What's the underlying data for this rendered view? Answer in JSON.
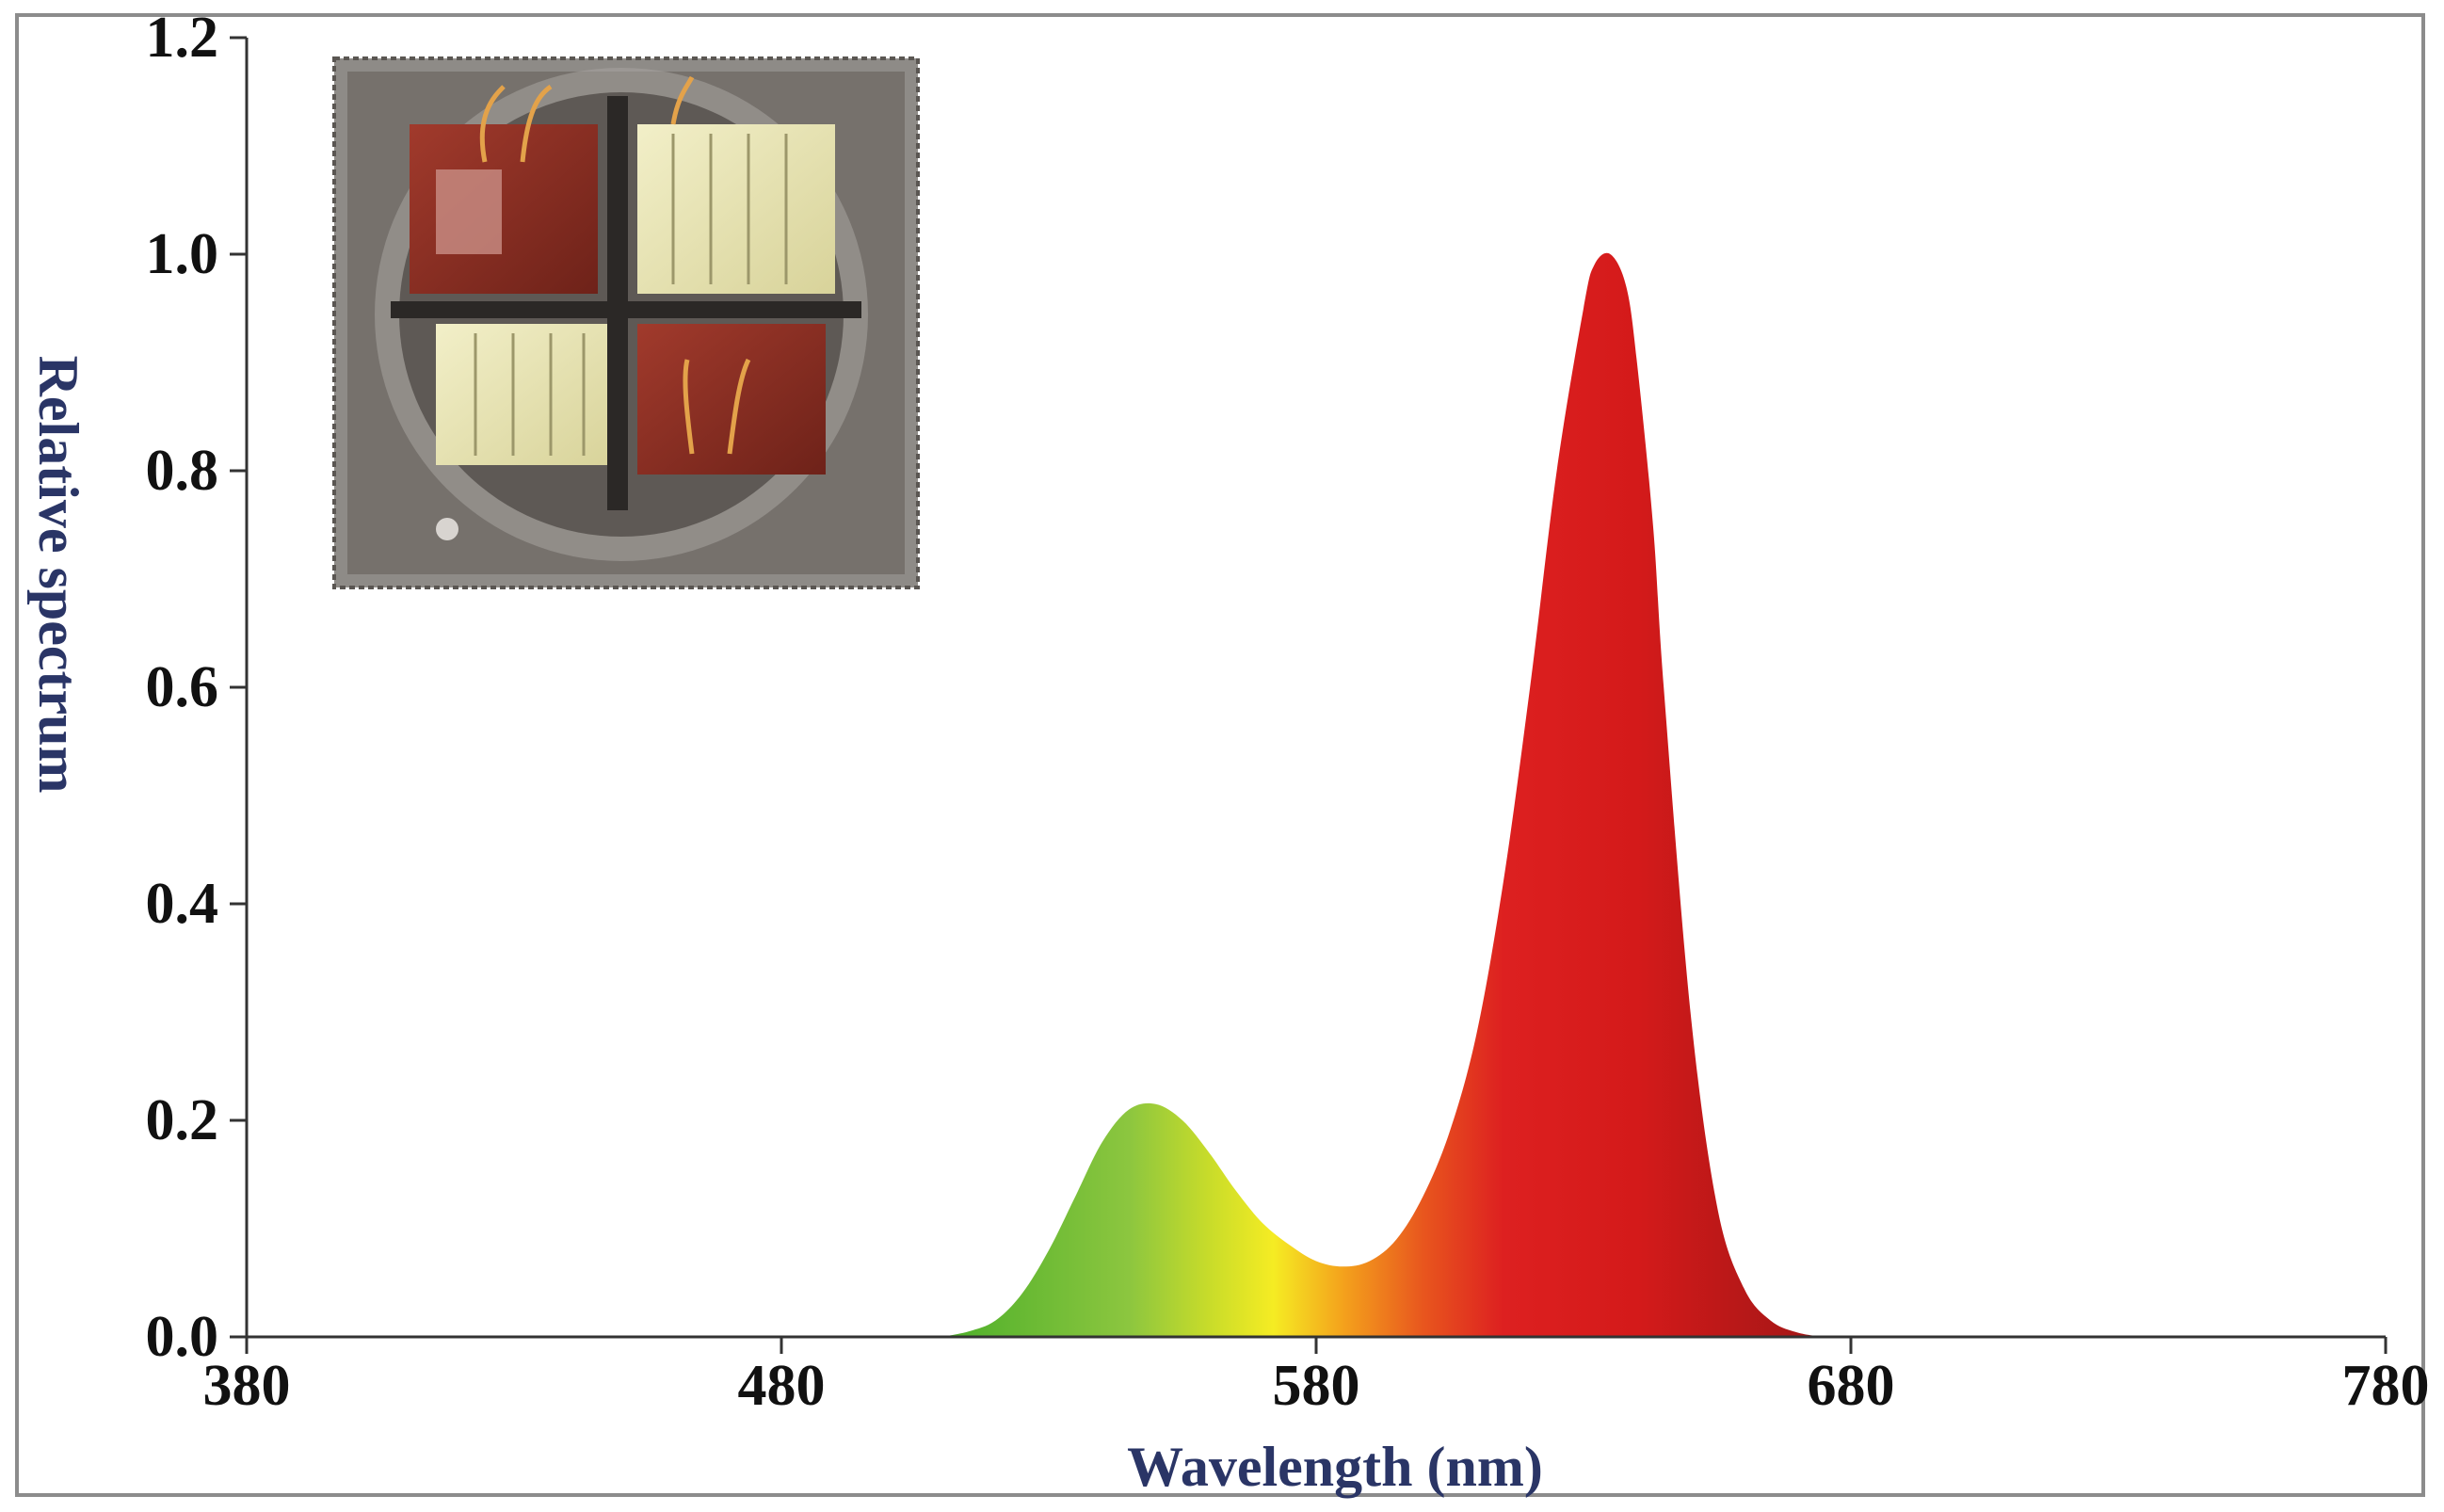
{
  "chart_data": {
    "type": "area",
    "title": "",
    "xlabel": "Wavelength (nm)",
    "ylabel": "Relative spectrum",
    "xlim": [
      380,
      780
    ],
    "ylim": [
      0,
      1.2
    ],
    "xticks": [
      380,
      480,
      580,
      680,
      780
    ],
    "yticks": [
      "0.0",
      "0.2",
      "0.4",
      "0.6",
      "0.8",
      "1.0",
      "1.2"
    ],
    "grid": false,
    "series": [
      {
        "x": [
          510,
          515,
          520,
          525,
          530,
          535,
          540,
          545,
          550,
          555,
          560,
          565,
          570,
          575,
          580,
          585,
          590,
          595,
          600,
          605,
          610,
          615,
          620,
          625,
          630,
          632,
          635,
          638,
          640,
          643,
          645,
          650,
          655,
          660,
          665,
          670,
          675
        ],
        "values": [
          0.0,
          0.005,
          0.015,
          0.04,
          0.08,
          0.13,
          0.18,
          0.21,
          0.215,
          0.2,
          0.17,
          0.135,
          0.105,
          0.085,
          0.07,
          0.065,
          0.07,
          0.09,
          0.13,
          0.19,
          0.28,
          0.42,
          0.6,
          0.8,
          0.95,
          0.99,
          1.0,
          0.97,
          0.9,
          0.75,
          0.6,
          0.3,
          0.12,
          0.045,
          0.015,
          0.004,
          0.0
        ]
      }
    ],
    "fill_gradient": [
      {
        "nm": 510,
        "color": "#4caf2a"
      },
      {
        "nm": 545,
        "color": "#8cc63f"
      },
      {
        "nm": 560,
        "color": "#c8dc2a"
      },
      {
        "nm": 572,
        "color": "#f5ec23"
      },
      {
        "nm": 585,
        "color": "#f4a21c"
      },
      {
        "nm": 600,
        "color": "#e8561e"
      },
      {
        "nm": 615,
        "color": "#dd2020"
      },
      {
        "nm": 640,
        "color": "#d41a1a"
      },
      {
        "nm": 675,
        "color": "#a11616"
      }
    ]
  },
  "inset_photo": {
    "description_icon": "led-chip-photo",
    "colors": {
      "frame": "#8e8b87",
      "base": "#6f6a66",
      "red_die": "#8a2e22",
      "white_die": "#e8e4b4",
      "ring": "#a8a4a0"
    }
  }
}
